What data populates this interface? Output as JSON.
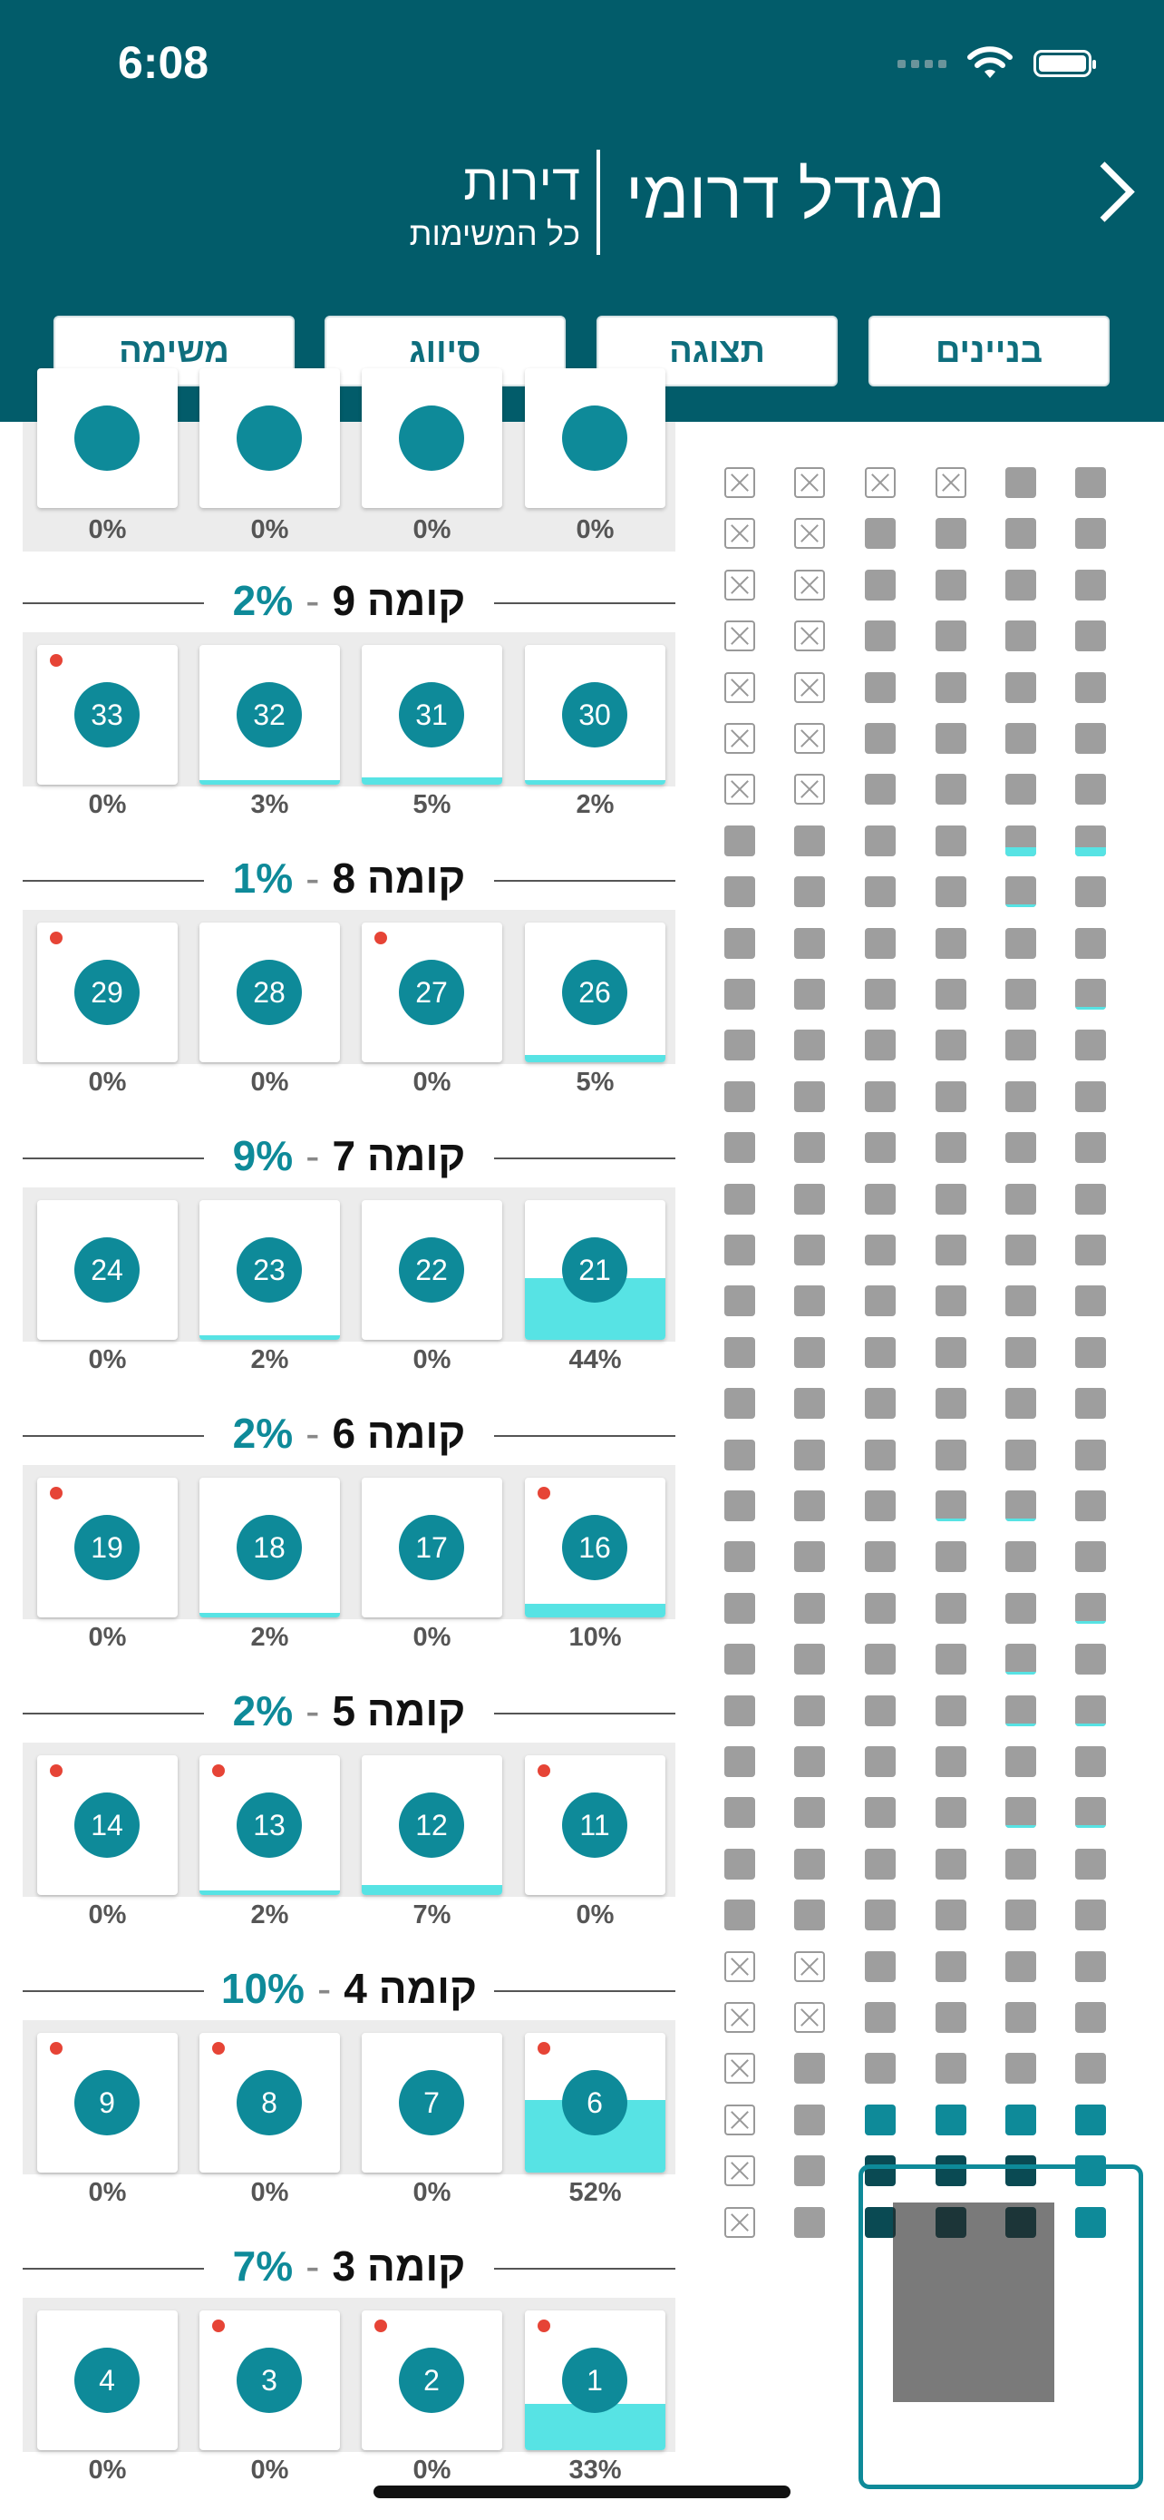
{
  "status_bar": {
    "time": "6:08"
  },
  "header": {
    "building_title": "מגדל דרומי",
    "section_title": "דירות",
    "filter_subtitle": "כל המשימות"
  },
  "toolbar": {
    "buildings_label": "בניינים",
    "view_label": "תצוגה",
    "sort_label": "סיווג",
    "task_label": "משימה"
  },
  "top_partial_row": {
    "percents": [
      "0%",
      "0%",
      "0%",
      "0%"
    ]
  },
  "floors": [
    {
      "label": "קומה 9",
      "percent": "2%",
      "apartments": [
        {
          "number": "33",
          "percent": "0%",
          "progress": 0,
          "alert": true
        },
        {
          "number": "32",
          "percent": "3%",
          "progress": 3,
          "alert": false
        },
        {
          "number": "31",
          "percent": "5%",
          "progress": 5,
          "alert": false
        },
        {
          "number": "30",
          "percent": "2%",
          "progress": 2,
          "alert": false
        }
      ]
    },
    {
      "label": "קומה 8",
      "percent": "1%",
      "apartments": [
        {
          "number": "29",
          "percent": "0%",
          "progress": 0,
          "alert": true
        },
        {
          "number": "28",
          "percent": "0%",
          "progress": 0,
          "alert": false
        },
        {
          "number": "27",
          "percent": "0%",
          "progress": 0,
          "alert": true
        },
        {
          "number": "26",
          "percent": "5%",
          "progress": 5,
          "alert": false
        }
      ]
    },
    {
      "label": "קומה 7",
      "percent": "9%",
      "apartments": [
        {
          "number": "24",
          "percent": "0%",
          "progress": 0,
          "alert": false
        },
        {
          "number": "23",
          "percent": "2%",
          "progress": 2,
          "alert": false
        },
        {
          "number": "22",
          "percent": "0%",
          "progress": 0,
          "alert": false
        },
        {
          "number": "21",
          "percent": "44%",
          "progress": 44,
          "alert": false
        }
      ]
    },
    {
      "label": "קומה 6",
      "percent": "2%",
      "apartments": [
        {
          "number": "19",
          "percent": "0%",
          "progress": 0,
          "alert": true
        },
        {
          "number": "18",
          "percent": "2%",
          "progress": 2,
          "alert": false
        },
        {
          "number": "17",
          "percent": "0%",
          "progress": 0,
          "alert": false
        },
        {
          "number": "16",
          "percent": "10%",
          "progress": 10,
          "alert": true
        }
      ]
    },
    {
      "label": "קומה 5",
      "percent": "2%",
      "apartments": [
        {
          "number": "14",
          "percent": "0%",
          "progress": 0,
          "alert": true
        },
        {
          "number": "13",
          "percent": "2%",
          "progress": 2,
          "alert": true
        },
        {
          "number": "12",
          "percent": "7%",
          "progress": 7,
          "alert": false
        },
        {
          "number": "11",
          "percent": "0%",
          "progress": 0,
          "alert": true
        }
      ]
    },
    {
      "label": "קומה 4",
      "percent": "10%",
      "apartments": [
        {
          "number": "9",
          "percent": "0%",
          "progress": 0,
          "alert": true
        },
        {
          "number": "8",
          "percent": "0%",
          "progress": 0,
          "alert": true
        },
        {
          "number": "7",
          "percent": "0%",
          "progress": 0,
          "alert": false
        },
        {
          "number": "6",
          "percent": "52%",
          "progress": 52,
          "alert": true
        }
      ]
    },
    {
      "label": "קומה 3",
      "percent": "7%",
      "apartments": [
        {
          "number": "4",
          "percent": "0%",
          "progress": 0,
          "alert": false
        },
        {
          "number": "3",
          "percent": "0%",
          "progress": 0,
          "alert": true
        },
        {
          "number": "2",
          "percent": "0%",
          "progress": 0,
          "alert": true
        },
        {
          "number": "1",
          "percent": "33%",
          "progress": 33,
          "alert": true
        }
      ]
    }
  ],
  "colors": {
    "header": "#025c6a",
    "accent": "#0e8a99",
    "progress": "#57e3e4",
    "alert": "#e64436"
  }
}
